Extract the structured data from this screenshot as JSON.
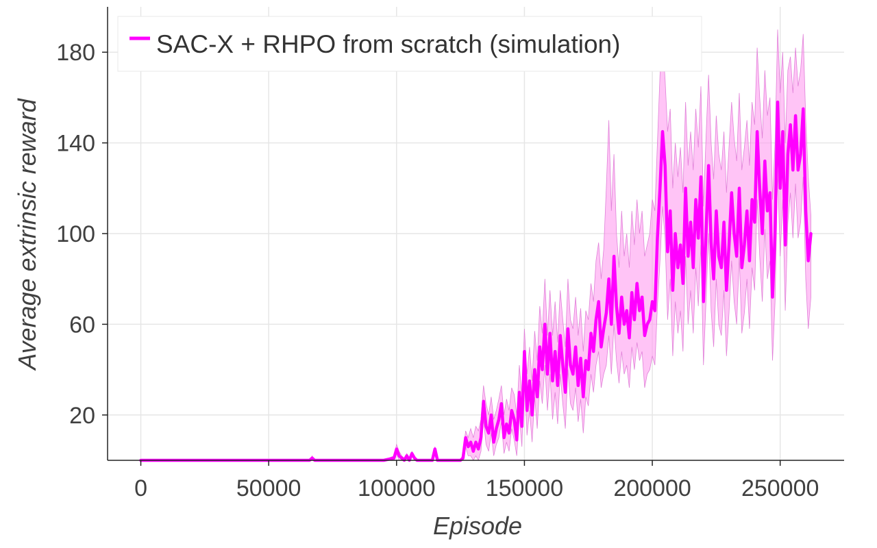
{
  "chart_data": {
    "type": "line",
    "title": "",
    "xlabel": "Episode",
    "ylabel": "Average extrinsic reward",
    "xlim": [
      -13000,
      275000
    ],
    "ylim": [
      0,
      200
    ],
    "xticks": [
      0,
      50000,
      100000,
      150000,
      200000,
      250000
    ],
    "xtick_labels": [
      "0",
      "50000",
      "100000",
      "150000",
      "200000",
      "250000"
    ],
    "yticks": [
      20,
      60,
      100,
      140,
      180
    ],
    "ytick_labels": [
      "20",
      "60",
      "100",
      "140",
      "180"
    ],
    "grid": true,
    "legend_position": "top-left",
    "colors": {
      "line": "#ff00ff",
      "band": "#ff9cf0",
      "band_edge": "#e080d8",
      "grid": "#e6e6e6",
      "axis": "#222222"
    },
    "series": [
      {
        "name": "SAC-X + RHPO from scratch (simulation)",
        "x": [
          0,
          66000,
          67000,
          68000,
          95000,
          99000,
          100000,
          101000,
          102000,
          103000,
          104000,
          105000,
          106000,
          107000,
          108000,
          114000,
          115000,
          116000,
          117000,
          124000,
          125000,
          126000,
          127000,
          128000,
          129000,
          130000,
          131000,
          132000,
          133000,
          134000,
          135000,
          136000,
          137000,
          138000,
          139000,
          140000,
          141000,
          142000,
          143000,
          144000,
          145000,
          146000,
          147000,
          148000,
          149000,
          150000,
          151000,
          152000,
          153000,
          154000,
          155000,
          156000,
          157000,
          158000,
          159000,
          160000,
          161000,
          162000,
          163000,
          164000,
          165000,
          166000,
          167000,
          168000,
          169000,
          170000,
          171000,
          172000,
          173000,
          174000,
          175000,
          176000,
          177000,
          178000,
          179000,
          180000,
          181000,
          182000,
          183000,
          184000,
          185000,
          186000,
          187000,
          188000,
          189000,
          190000,
          191000,
          192000,
          193000,
          194000,
          195000,
          196000,
          197000,
          198000,
          199000,
          200000,
          201000,
          202000,
          203000,
          204000,
          205000,
          206000,
          207000,
          208000,
          209000,
          210000,
          211000,
          212000,
          213000,
          214000,
          215000,
          216000,
          217000,
          218000,
          219000,
          220000,
          221000,
          222000,
          223000,
          224000,
          225000,
          226000,
          227000,
          228000,
          229000,
          230000,
          231000,
          232000,
          233000,
          234000,
          235000,
          236000,
          237000,
          238000,
          239000,
          240000,
          241000,
          242000,
          243000,
          244000,
          245000,
          246000,
          247000,
          248000,
          249000,
          250000,
          251000,
          252000,
          253000,
          254000,
          255000,
          256000,
          257000,
          258000,
          259000,
          260000,
          261000,
          262000
        ],
        "mean": [
          0,
          0,
          1,
          0,
          0,
          1,
          5,
          2,
          1,
          0,
          2,
          0,
          3,
          1,
          0,
          0,
          5,
          0,
          0,
          0,
          0,
          1,
          10,
          6,
          8,
          4,
          8,
          5,
          10,
          26,
          15,
          12,
          20,
          8,
          14,
          18,
          25,
          10,
          16,
          12,
          22,
          18,
          9,
          30,
          15,
          48,
          22,
          35,
          20,
          40,
          28,
          50,
          40,
          60,
          38,
          56,
          35,
          48,
          33,
          55,
          42,
          30,
          58,
          42,
          38,
          50,
          33,
          45,
          28,
          44,
          40,
          56,
          48,
          62,
          70,
          50,
          58,
          65,
          80,
          60,
          90,
          68,
          56,
          72,
          60,
          66,
          54,
          74,
          62,
          78,
          66,
          72,
          55,
          60,
          62,
          70,
          66,
          98,
          120,
          145,
          130,
          92,
          110,
          75,
          100,
          85,
          95,
          78,
          120,
          90,
          105,
          85,
          115,
          98,
          125,
          70,
          100,
          130,
          96,
          80,
          110,
          90,
          85,
          105,
          75,
          95,
          118,
          100,
          90,
          120,
          85,
          95,
          110,
          88,
          115,
          105,
          145,
          120,
          100,
          132,
          110,
          118,
          72,
          100,
          158,
          120,
          145,
          95,
          135,
          148,
          128,
          152,
          128,
          135,
          155,
          110,
          88,
          100
        ],
        "upper": [
          0,
          0,
          2,
          0,
          0,
          2,
          7,
          4,
          2,
          1,
          3,
          1,
          4,
          2,
          0,
          0,
          6,
          1,
          0,
          0,
          0,
          3,
          13,
          10,
          14,
          10,
          15,
          13,
          18,
          33,
          25,
          20,
          28,
          18,
          22,
          27,
          33,
          20,
          27,
          22,
          32,
          29,
          20,
          42,
          28,
          58,
          38,
          50,
          35,
          57,
          44,
          68,
          56,
          80,
          55,
          75,
          55,
          70,
          52,
          75,
          62,
          50,
          80,
          62,
          58,
          72,
          55,
          67,
          48,
          66,
          62,
          78,
          70,
          88,
          96,
          80,
          93,
          120,
          150,
          110,
          135,
          100,
          85,
          110,
          90,
          100,
          85,
          110,
          95,
          115,
          100,
          110,
          90,
          95,
          100,
          115,
          110,
          140,
          170,
          185,
          168,
          145,
          155,
          120,
          140,
          125,
          138,
          118,
          158,
          130,
          145,
          128,
          155,
          138,
          165,
          112,
          142,
          170,
          140,
          124,
          152,
          135,
          128,
          145,
          118,
          138,
          158,
          142,
          132,
          162,
          128,
          138,
          150,
          130,
          158,
          148,
          182,
          160,
          142,
          172,
          152,
          160,
          115,
          140,
          190,
          162,
          180,
          140,
          172,
          178,
          162,
          182,
          165,
          172,
          188,
          150,
          125,
          108
        ],
        "lower": [
          0,
          0,
          0,
          0,
          0,
          0,
          3,
          0,
          0,
          0,
          1,
          0,
          2,
          0,
          0,
          0,
          4,
          0,
          0,
          0,
          0,
          0,
          6,
          2,
          2,
          0,
          2,
          0,
          4,
          18,
          7,
          4,
          12,
          2,
          7,
          10,
          17,
          3,
          8,
          4,
          14,
          9,
          2,
          20,
          6,
          38,
          11,
          22,
          8,
          28,
          14,
          35,
          25,
          42,
          22,
          38,
          18,
          30,
          16,
          38,
          25,
          14,
          40,
          25,
          22,
          32,
          17,
          27,
          12,
          28,
          24,
          38,
          30,
          42,
          48,
          32,
          38,
          42,
          55,
          38,
          60,
          44,
          34,
          48,
          38,
          42,
          32,
          50,
          40,
          52,
          44,
          48,
          32,
          38,
          40,
          46,
          42,
          68,
          88,
          112,
          98,
          62,
          80,
          46,
          70,
          56,
          66,
          48,
          90,
          60,
          75,
          56,
          85,
          68,
          95,
          42,
          70,
          100,
          66,
          50,
          80,
          60,
          55,
          75,
          46,
          65,
          88,
          70,
          60,
          90,
          56,
          65,
          80,
          58,
          85,
          75,
          115,
          90,
          70,
          102,
          80,
          88,
          44,
          70,
          128,
          90,
          115,
          66,
          105,
          118,
          98,
          122,
          98,
          105,
          125,
          80,
          58,
          72
        ]
      }
    ]
  }
}
